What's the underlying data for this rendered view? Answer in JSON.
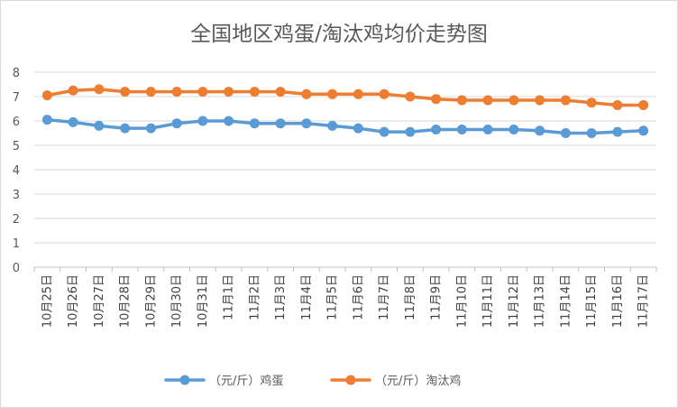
{
  "chart_data": {
    "type": "line",
    "title": "全国地区鸡蛋/淘汰鸡均价走势图",
    "categories": [
      "10月25日",
      "10月26日",
      "10月27日",
      "10月28日",
      "10月29日",
      "10月30日",
      "10月31日",
      "11月1日",
      "11月2日",
      "11月3日",
      "11月4日",
      "11月5日",
      "11月6日",
      "11月7日",
      "11月8日",
      "11月9日",
      "11月10日",
      "11月11日",
      "11月12日",
      "11月13日",
      "11月14日",
      "11月15日",
      "11月16日",
      "11月17日"
    ],
    "ylim": [
      0,
      8
    ],
    "yticks": [
      0,
      1,
      2,
      3,
      4,
      5,
      6,
      7,
      8
    ],
    "grid": true,
    "legend_position": "bottom",
    "series": [
      {
        "name": "（元/斤）鸡蛋",
        "color": "#5B9BD5",
        "values": [
          6.05,
          5.95,
          5.8,
          5.7,
          5.7,
          5.9,
          6.0,
          6.0,
          5.9,
          5.9,
          5.9,
          5.8,
          5.7,
          5.55,
          5.55,
          5.65,
          5.65,
          5.65,
          5.65,
          5.6,
          5.5,
          5.5,
          5.55,
          5.6
        ]
      },
      {
        "name": "（元/斤）淘汰鸡",
        "color": "#ED7D31",
        "values": [
          7.05,
          7.25,
          7.3,
          7.2,
          7.2,
          7.2,
          7.2,
          7.2,
          7.2,
          7.2,
          7.1,
          7.1,
          7.1,
          7.1,
          7.0,
          6.9,
          6.85,
          6.85,
          6.85,
          6.85,
          6.85,
          6.75,
          6.65,
          6.65
        ]
      }
    ]
  }
}
